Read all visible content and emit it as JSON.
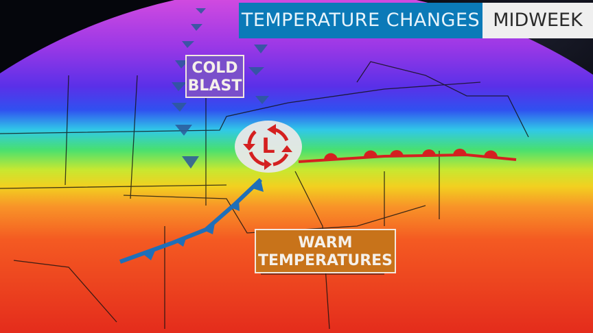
{
  "header": {
    "title": "TEMPERATURE CHANGES",
    "timeframe": "MIDWEEK"
  },
  "labels": {
    "cold_line1": "COLD",
    "cold_line2": "BLAST",
    "warm_line1": "WARM",
    "warm_line2": "TEMPERATURES",
    "low_pressure": "L"
  },
  "colors": {
    "title_bg": "#0b7ab8",
    "cold_front": "#1f6fb8",
    "warm_front": "#d42020",
    "low_symbol": "#d42020",
    "cold_label_bg": "#7a4fcb",
    "warm_label_bg": "#c8731a"
  },
  "features": [
    "cold-front",
    "warm-front",
    "low-pressure-center",
    "arctic-air-arrows"
  ]
}
